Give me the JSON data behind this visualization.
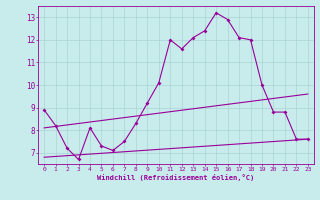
{
  "background_color": "#c8ecec",
  "grid_color": "#aad4d4",
  "line_color": "#990099",
  "xlabel": "Windchill (Refroidissement éolien,°C)",
  "xlim": [
    -0.5,
    23.5
  ],
  "ylim": [
    6.5,
    13.5
  ],
  "yticks": [
    7,
    8,
    9,
    10,
    11,
    12,
    13
  ],
  "xticks": [
    0,
    1,
    2,
    3,
    4,
    5,
    6,
    7,
    8,
    9,
    10,
    11,
    12,
    13,
    14,
    15,
    16,
    17,
    18,
    19,
    20,
    21,
    22,
    23
  ],
  "series1_x": [
    0,
    1,
    2,
    3,
    4,
    5,
    6,
    7,
    8,
    9,
    10,
    11,
    12,
    13,
    14,
    15,
    16,
    17,
    18,
    19,
    20,
    21,
    22,
    23
  ],
  "series1_y": [
    8.9,
    8.2,
    7.2,
    6.7,
    8.1,
    7.3,
    7.1,
    7.5,
    8.3,
    9.2,
    10.1,
    12.0,
    11.6,
    12.1,
    12.4,
    13.2,
    12.9,
    12.1,
    12.0,
    10.0,
    8.8,
    8.8,
    7.6,
    7.6
  ],
  "series2_x": [
    0,
    23
  ],
  "series2_y": [
    8.1,
    9.6
  ],
  "series3_x": [
    0,
    23
  ],
  "series3_y": [
    6.8,
    7.6
  ]
}
